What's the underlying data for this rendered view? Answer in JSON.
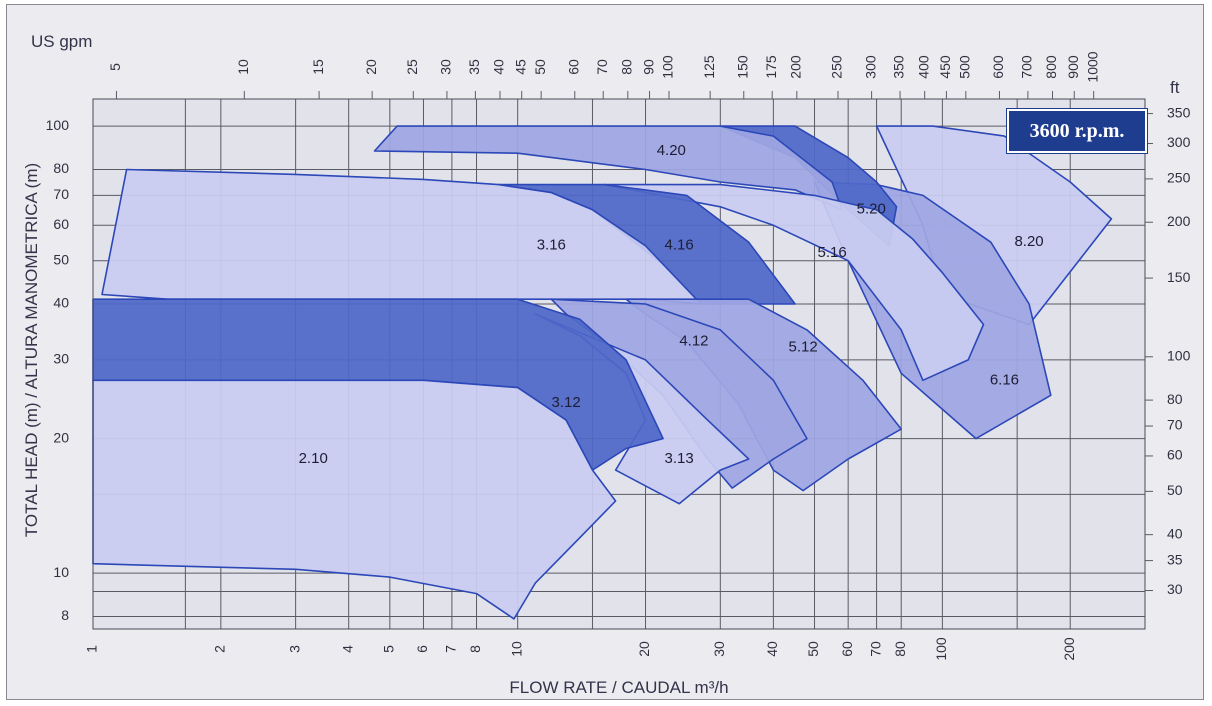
{
  "chart_data": {
    "type": "area",
    "title": "",
    "badge": "3600 r.p.m.",
    "xlabel": "FLOW RATE / CAUDAL m³/h",
    "ylabel": "TOTAL HEAD (m) / ALTURA MANOMETRICA (m)",
    "x2label": "US gpm",
    "y2label": "ft",
    "x_scale": "log",
    "y_scale": "log",
    "xlim": [
      1,
      300
    ],
    "ylim": [
      7.5,
      115
    ],
    "grid": true,
    "x_ticks": [
      "1",
      "2",
      "3",
      "4",
      "5",
      "6",
      "7",
      "8",
      "10",
      "20",
      "30",
      "40",
      "50",
      "60",
      "70",
      "80",
      "100",
      "200"
    ],
    "x_tick_values": [
      1,
      2,
      3,
      4,
      5,
      6,
      7,
      8,
      10,
      20,
      30,
      40,
      50,
      60,
      70,
      80,
      100,
      200
    ],
    "y_ticks": [
      "8",
      "10",
      "20",
      "30",
      "40",
      "50",
      "60",
      "70",
      "80",
      "100"
    ],
    "y_tick_values": [
      8,
      10,
      20,
      30,
      40,
      50,
      60,
      70,
      80,
      100
    ],
    "gpm_ticks": [
      "5",
      "10",
      "15",
      "20",
      "25",
      "30",
      "35",
      "40",
      "45",
      "50",
      "60",
      "70",
      "80",
      "90",
      "100",
      "125",
      "150",
      "175",
      "200",
      "250",
      "300",
      "350",
      "400",
      "450",
      "500",
      "600",
      "700",
      "800",
      "900",
      "1000"
    ],
    "gpm_tick_values": [
      5,
      10,
      15,
      20,
      25,
      30,
      35,
      40,
      45,
      50,
      60,
      70,
      80,
      90,
      100,
      125,
      150,
      175,
      200,
      250,
      300,
      350,
      400,
      450,
      500,
      600,
      700,
      800,
      900,
      1000
    ],
    "ft_ticks": [
      "350",
      "300",
      "250",
      "200",
      "150",
      "100",
      "80",
      "70",
      "60",
      "50",
      "40",
      "35",
      "30"
    ],
    "ft_tick_values": [
      350,
      300,
      250,
      200,
      150,
      100,
      80,
      70,
      60,
      50,
      40,
      35,
      30
    ],
    "colors": {
      "light": "#c9ccf1",
      "medium": "#9fa6e2",
      "dark": "#4f68c8",
      "outline": "#2c48b8",
      "grid": "#5a5a66"
    },
    "series": [
      {
        "name": "8.20",
        "shade": "light",
        "label_at": [
          160,
          55
        ],
        "points": [
          [
            70,
            100
          ],
          [
            95,
            100
          ],
          [
            140,
            95
          ],
          [
            200,
            75
          ],
          [
            250,
            62
          ],
          [
            160,
            36
          ],
          [
            100,
            42
          ],
          [
            90,
            60
          ]
        ]
      },
      {
        "name": "6.16",
        "shade": "medium",
        "label_at": [
          140,
          27
        ],
        "points": [
          [
            50,
            75
          ],
          [
            70,
            74
          ],
          [
            90,
            70
          ],
          [
            130,
            55
          ],
          [
            160,
            40
          ],
          [
            180,
            25
          ],
          [
            120,
            20
          ],
          [
            80,
            28
          ],
          [
            60,
            50
          ]
        ]
      },
      {
        "name": "5.20",
        "shade": "dark",
        "label_at": [
          68,
          65
        ],
        "points": [
          [
            30,
            100
          ],
          [
            45,
            100
          ],
          [
            60,
            85
          ],
          [
            70,
            75
          ],
          [
            78,
            66
          ],
          [
            75,
            54
          ],
          [
            60,
            65
          ],
          [
            45,
            85
          ]
        ]
      },
      {
        "name": "4.20",
        "shade": "medium",
        "label_at": [
          23,
          88
        ],
        "points": [
          [
            4.6,
            88
          ],
          [
            5.2,
            100
          ],
          [
            20,
            100
          ],
          [
            30,
            100
          ],
          [
            40,
            95
          ],
          [
            55,
            75
          ],
          [
            58,
            65
          ],
          [
            45,
            72
          ],
          [
            30,
            75
          ],
          [
            20,
            80
          ],
          [
            10,
            87
          ]
        ]
      },
      {
        "name": "5.16",
        "shade": "light",
        "label_at": [
          55,
          52
        ],
        "points": [
          [
            16,
            74
          ],
          [
            30,
            74
          ],
          [
            50,
            70
          ],
          [
            70,
            65
          ],
          [
            85,
            56
          ],
          [
            100,
            47
          ],
          [
            125,
            36
          ],
          [
            115,
            30
          ],
          [
            90,
            27
          ],
          [
            80,
            35
          ],
          [
            60,
            50
          ],
          [
            40,
            60
          ],
          [
            30,
            66
          ],
          [
            20,
            71
          ]
        ]
      },
      {
        "name": "4.16",
        "shade": "dark",
        "label_at": [
          24,
          54
        ],
        "points": [
          [
            9,
            74
          ],
          [
            16,
            74
          ],
          [
            25,
            70
          ],
          [
            35,
            55
          ],
          [
            45,
            40
          ],
          [
            35,
            40
          ],
          [
            27,
            40
          ],
          [
            22,
            49
          ],
          [
            15,
            65
          ],
          [
            12,
            71
          ]
        ]
      },
      {
        "name": "3.16",
        "shade": "light",
        "label_at": [
          12,
          54
        ],
        "points": [
          [
            1.05,
            42
          ],
          [
            1.2,
            80
          ],
          [
            3,
            78
          ],
          [
            6,
            76
          ],
          [
            9,
            74
          ],
          [
            12,
            71
          ],
          [
            15,
            65
          ],
          [
            20,
            54
          ],
          [
            27,
            40
          ],
          [
            20,
            41
          ],
          [
            10,
            41
          ],
          [
            3,
            41
          ],
          [
            1.5,
            41
          ]
        ]
      },
      {
        "name": "5.12",
        "shade": "medium",
        "label_at": [
          47,
          32
        ],
        "points": [
          [
            18,
            41
          ],
          [
            35,
            41
          ],
          [
            48,
            35
          ],
          [
            65,
            27
          ],
          [
            80,
            21
          ],
          [
            60,
            18
          ],
          [
            47,
            15.3
          ],
          [
            40,
            17
          ],
          [
            33,
            24
          ],
          [
            25,
            33
          ],
          [
            20,
            38
          ]
        ]
      },
      {
        "name": "4.12",
        "shade": "medium",
        "label_at": [
          26,
          33
        ],
        "points": [
          [
            12,
            41
          ],
          [
            20,
            40
          ],
          [
            30,
            35
          ],
          [
            40,
            27
          ],
          [
            48,
            20
          ],
          [
            40,
            18
          ],
          [
            32,
            15.5
          ],
          [
            28,
            18
          ],
          [
            22,
            25
          ],
          [
            16,
            33
          ],
          [
            13,
            38
          ]
        ]
      },
      {
        "name": "3.13",
        "shade": "light",
        "label_at": [
          24,
          18
        ],
        "points": [
          [
            11,
            38
          ],
          [
            20,
            30
          ],
          [
            28,
            22
          ],
          [
            35,
            18
          ],
          [
            30,
            17
          ],
          [
            24,
            14.3
          ],
          [
            17,
            17
          ],
          [
            20,
            22
          ],
          [
            18,
            28
          ],
          [
            14,
            34
          ]
        ]
      },
      {
        "name": "3.12",
        "shade": "dark",
        "label_at": [
          13,
          24
        ],
        "points": [
          [
            1,
            41
          ],
          [
            5,
            41
          ],
          [
            10,
            41
          ],
          [
            14,
            37
          ],
          [
            18,
            30
          ],
          [
            22,
            20
          ],
          [
            18,
            19
          ],
          [
            15,
            17
          ],
          [
            13,
            22
          ],
          [
            10,
            26
          ],
          [
            6,
            27
          ],
          [
            1,
            27
          ]
        ]
      },
      {
        "name": "2.10",
        "shade": "light",
        "label_at": [
          3.3,
          18
        ],
        "points": [
          [
            1,
            27
          ],
          [
            3,
            27
          ],
          [
            6,
            27
          ],
          [
            10,
            26
          ],
          [
            13,
            22
          ],
          [
            15,
            17
          ],
          [
            17,
            14.5
          ],
          [
            14,
            12
          ],
          [
            11,
            9.5
          ],
          [
            9.8,
            7.9
          ],
          [
            8,
            9
          ],
          [
            5,
            9.8
          ],
          [
            3,
            10.2
          ],
          [
            1,
            10.5
          ]
        ]
      }
    ]
  }
}
